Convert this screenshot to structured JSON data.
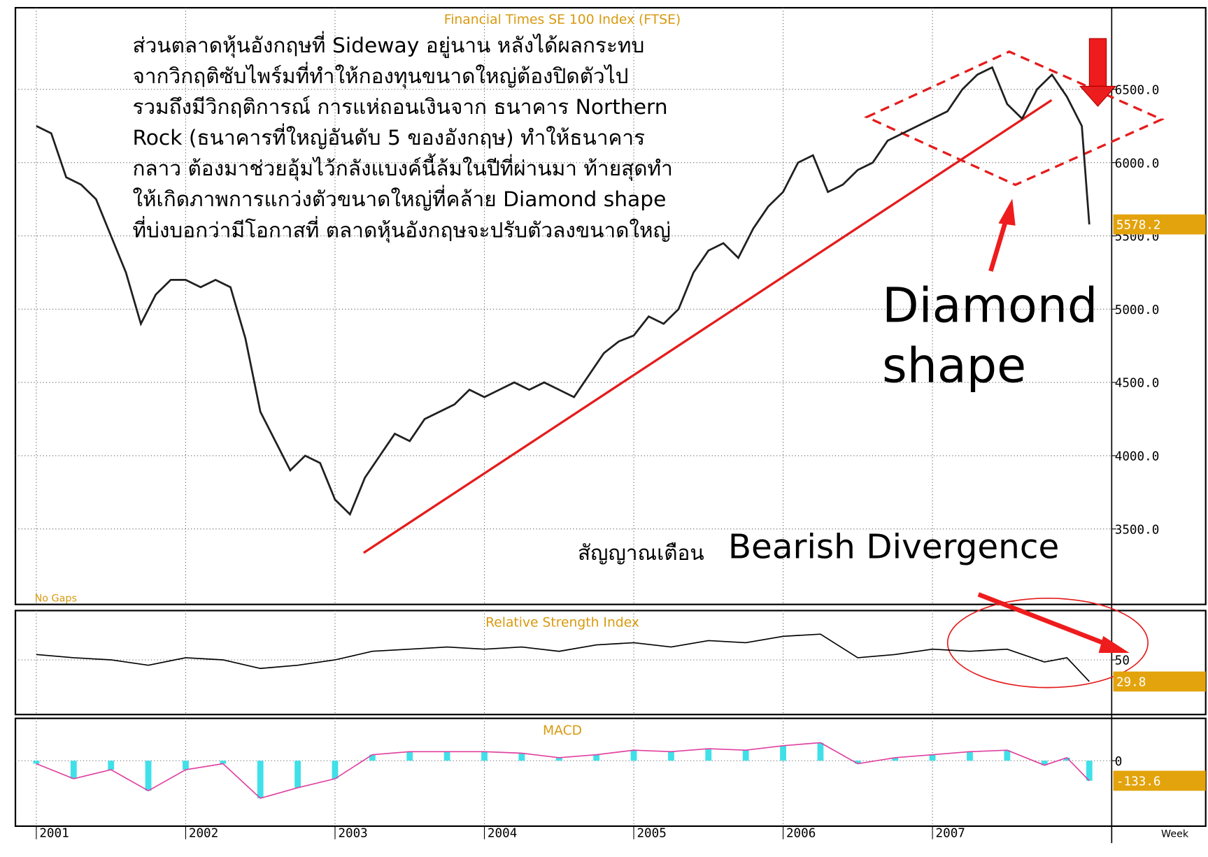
{
  "chart_data": [
    {
      "type": "line",
      "title": "Financial Times SE 100 Index (FTSE)",
      "note": "No Gaps",
      "annotations": [
        "ส่วนตลาดหุ้นอังกฤษที่ Sideway อยู่นาน หลังได้ผลกระทบ",
        "จากวิกฤติซับไพร์มที่ทำให้กองทุนขนาดใหญ่ต้องปิดตัวไป",
        "รวมถึงมีวิกฤติการณ์ การแห่ถอนเงินจาก ธนาคาร Northern",
        "Rock (ธนาคารที่ใหญ่อันดับ 5 ของอังกฤษ) ทำให้ธนาคาร",
        "กลาว ต้องมาช่วยอุ้มไว้กลังแบงค์นี้ล้มในปีที่ผ่านมา ท้ายสุดทำ",
        "ให้เกิดภาพการแกว่งตัวขนาดใหญ่ที่คล้าย Diamond shape",
        "ที่บ่งบอกว่ามีโอกาสที่ ตลาดหุ้นอังกฤษจะปรับตัวลงขนาดใหญ่"
      ],
      "pattern_label": [
        "Diamond",
        "shape"
      ],
      "warning_label": "สัญญาณเตือน",
      "divergence_label": "Bearish Divergence",
      "x": [
        2001.0,
        2001.1,
        2001.2,
        2001.3,
        2001.4,
        2001.5,
        2001.6,
        2001.7,
        2001.8,
        2001.9,
        2002.0,
        2002.1,
        2002.2,
        2002.3,
        2002.4,
        2002.5,
        2002.6,
        2002.7,
        2002.8,
        2002.9,
        2003.0,
        2003.1,
        2003.2,
        2003.3,
        2003.4,
        2003.5,
        2003.6,
        2003.7,
        2003.8,
        2003.9,
        2004.0,
        2004.1,
        2004.2,
        2004.3,
        2004.4,
        2004.5,
        2004.6,
        2004.7,
        2004.8,
        2004.9,
        2005.0,
        2005.1,
        2005.2,
        2005.3,
        2005.4,
        2005.5,
        2005.6,
        2005.7,
        2005.8,
        2005.9,
        2006.0,
        2006.1,
        2006.2,
        2006.3,
        2006.4,
        2006.5,
        2006.6,
        2006.7,
        2006.8,
        2006.9,
        2007.0,
        2007.1,
        2007.2,
        2007.3,
        2007.4,
        2007.5,
        2007.6,
        2007.7,
        2007.8,
        2007.9,
        2008.0,
        2008.05
      ],
      "values": [
        6250,
        6200,
        5900,
        5850,
        5750,
        5500,
        5250,
        4900,
        5100,
        5200,
        5200,
        5150,
        5200,
        5150,
        4800,
        4300,
        4100,
        3900,
        4000,
        3950,
        3700,
        3600,
        3850,
        4000,
        4150,
        4100,
        4250,
        4300,
        4350,
        4450,
        4400,
        4450,
        4500,
        4450,
        4500,
        4450,
        4400,
        4550,
        4700,
        4780,
        4820,
        4950,
        4900,
        5000,
        5250,
        5400,
        5450,
        5350,
        5550,
        5700,
        5800,
        6000,
        6050,
        5800,
        5850,
        5950,
        6000,
        6150,
        6200,
        6250,
        6300,
        6350,
        6500,
        6600,
        6650,
        6400,
        6300,
        6500,
        6600,
        6450,
        6250,
        5578.2
      ],
      "color": "#202020",
      "xlim": [
        2000.86,
        2008.2
      ],
      "xticks": [
        2001,
        2002,
        2003,
        2004,
        2005,
        2006,
        2007
      ],
      "ylim": [
        2985,
        7057
      ],
      "yticks": [
        {
          "value": 3500,
          "label": "3500.0"
        },
        {
          "value": 4000,
          "label": "4000.0"
        },
        {
          "value": 4500,
          "label": "4500.0"
        },
        {
          "value": 5000,
          "label": "5000.0"
        },
        {
          "value": 5500,
          "label": "5500.0"
        },
        {
          "value": 6000,
          "label": "6000.0"
        },
        {
          "value": 6500,
          "label": "6500.0"
        }
      ],
      "grid": true
    },
    {
      "type": "line",
      "title": "Relative Strength Index",
      "x": [
        2001.0,
        2001.25,
        2001.5,
        2001.75,
        2002.0,
        2002.25,
        2002.5,
        2002.75,
        2003.0,
        2003.25,
        2003.5,
        2003.75,
        2004.0,
        2004.25,
        2004.5,
        2004.75,
        2005.0,
        2005.25,
        2005.5,
        2005.75,
        2006.0,
        2006.25,
        2006.5,
        2006.75,
        2007.0,
        2007.25,
        2007.5,
        2007.75,
        2007.9,
        2008.05
      ],
      "values": [
        55,
        52,
        50,
        45,
        52,
        50,
        42,
        45,
        50,
        58,
        60,
        62,
        60,
        62,
        58,
        64,
        66,
        62,
        68,
        66,
        72,
        74,
        52,
        55,
        60,
        58,
        60,
        48,
        52,
        29.8
      ],
      "color": "#000000",
      "xlim": [
        2000.86,
        2008.2
      ],
      "xticks": [
        2001,
        2002,
        2003,
        2004,
        2005,
        2006,
        2007
      ],
      "ylim": [
        -1,
        96
      ],
      "yticks": [
        50
      ],
      "grid": true
    },
    {
      "type": "bar",
      "title": "MACD",
      "xlabel": "Week",
      "x": [
        2001.0,
        2001.25,
        2001.5,
        2001.75,
        2002.0,
        2002.25,
        2002.5,
        2002.75,
        2003.0,
        2003.25,
        2003.5,
        2003.75,
        2004.0,
        2004.25,
        2004.5,
        2004.75,
        2005.0,
        2005.25,
        2005.5,
        2005.75,
        2006.0,
        2006.25,
        2006.5,
        2006.75,
        2007.0,
        2007.25,
        2007.5,
        2007.75,
        2007.9,
        2008.05
      ],
      "values": [
        -20,
        -120,
        -60,
        -200,
        -60,
        -20,
        -250,
        -180,
        -120,
        40,
        60,
        60,
        60,
        50,
        20,
        40,
        70,
        60,
        80,
        70,
        100,
        120,
        -20,
        20,
        40,
        60,
        70,
        -30,
        20,
        -133.6
      ],
      "color": "#40e0e8",
      "xlim": [
        2000.86,
        2008.2
      ],
      "xticks": [
        2001,
        2002,
        2003,
        2004,
        2005,
        2006,
        2007
      ],
      "ylim": [
        -436,
        282
      ],
      "yticks": [
        0
      ],
      "grid": true
    }
  ]
}
